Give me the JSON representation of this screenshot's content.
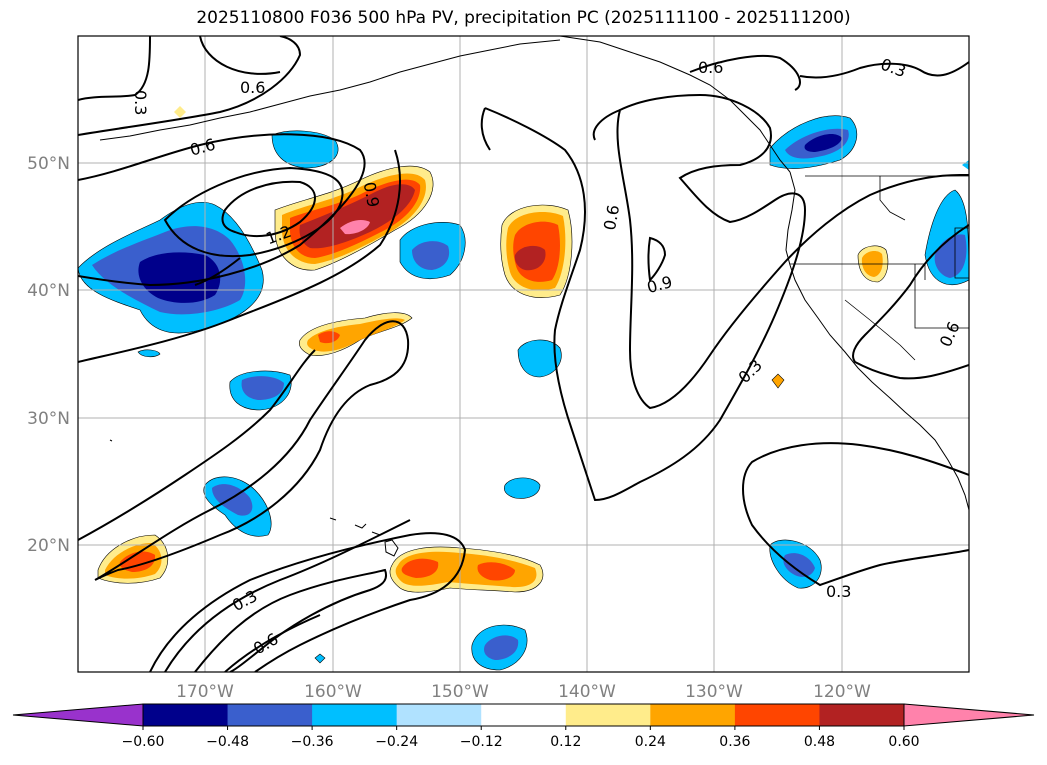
{
  "title": "2025110800 F036 500 hPa PV, precipitation PC (2025111100 - 2025111200)",
  "latitude_labels": [
    "50°N",
    "40°N",
    "30°N",
    "20°N"
  ],
  "longitude_labels": [
    "170°W",
    "160°W",
    "150°W",
    "140°W",
    "130°W",
    "120°W"
  ],
  "contour_labels": [
    "0.6",
    "0.3",
    "0.6",
    "0.9",
    "1.2",
    "0.6",
    "0.3",
    "0.6",
    "0.9",
    "0.3",
    "0.6",
    "0.3",
    "0.6",
    "0.3"
  ],
  "colorbar": {
    "tick_labels": [
      "−0.60",
      "−0.48",
      "−0.36",
      "−0.24",
      "−0.12",
      "0.12",
      "0.24",
      "0.36",
      "0.48",
      "0.60"
    ],
    "colors": [
      "#9932cc",
      "#00008b",
      "#3a5fcd",
      "#00bfff",
      "#b0e2ff",
      "#ffffff",
      "#ffec8b",
      "#ffa500",
      "#ff4500",
      "#b22222",
      "#ff82ab"
    ]
  },
  "colors": {
    "land_outline": "#000000",
    "grid": "#b0b0b0",
    "tick_text": "#808080"
  }
}
